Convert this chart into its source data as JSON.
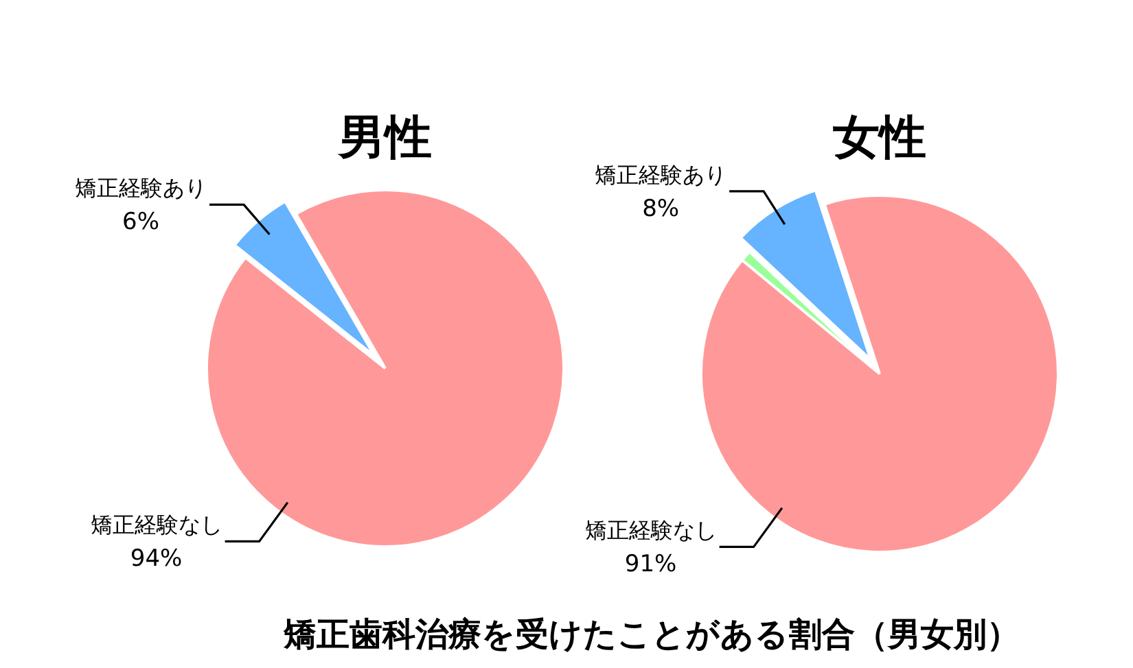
{
  "chart_data": [
    {
      "type": "pie",
      "title": "男性",
      "categories": [
        "矯正経験あり",
        "矯正経験なし"
      ],
      "values": [
        6,
        94
      ],
      "colors": [
        "#66b3ff",
        "#ff9999"
      ],
      "value_labels": [
        "6%",
        "94%"
      ]
    },
    {
      "type": "pie",
      "title": "女性",
      "categories": [
        "矯正経験あり",
        null,
        "矯正経験なし"
      ],
      "values": [
        8,
        1,
        91
      ],
      "colors": [
        "#66b3ff",
        "#99ff99",
        "#ff9999"
      ],
      "value_labels": [
        "8%",
        null,
        "91%"
      ]
    },
    {
      "type": "other",
      "title": "矯正歯科治療を受けたことがある割合（男女別）"
    }
  ]
}
